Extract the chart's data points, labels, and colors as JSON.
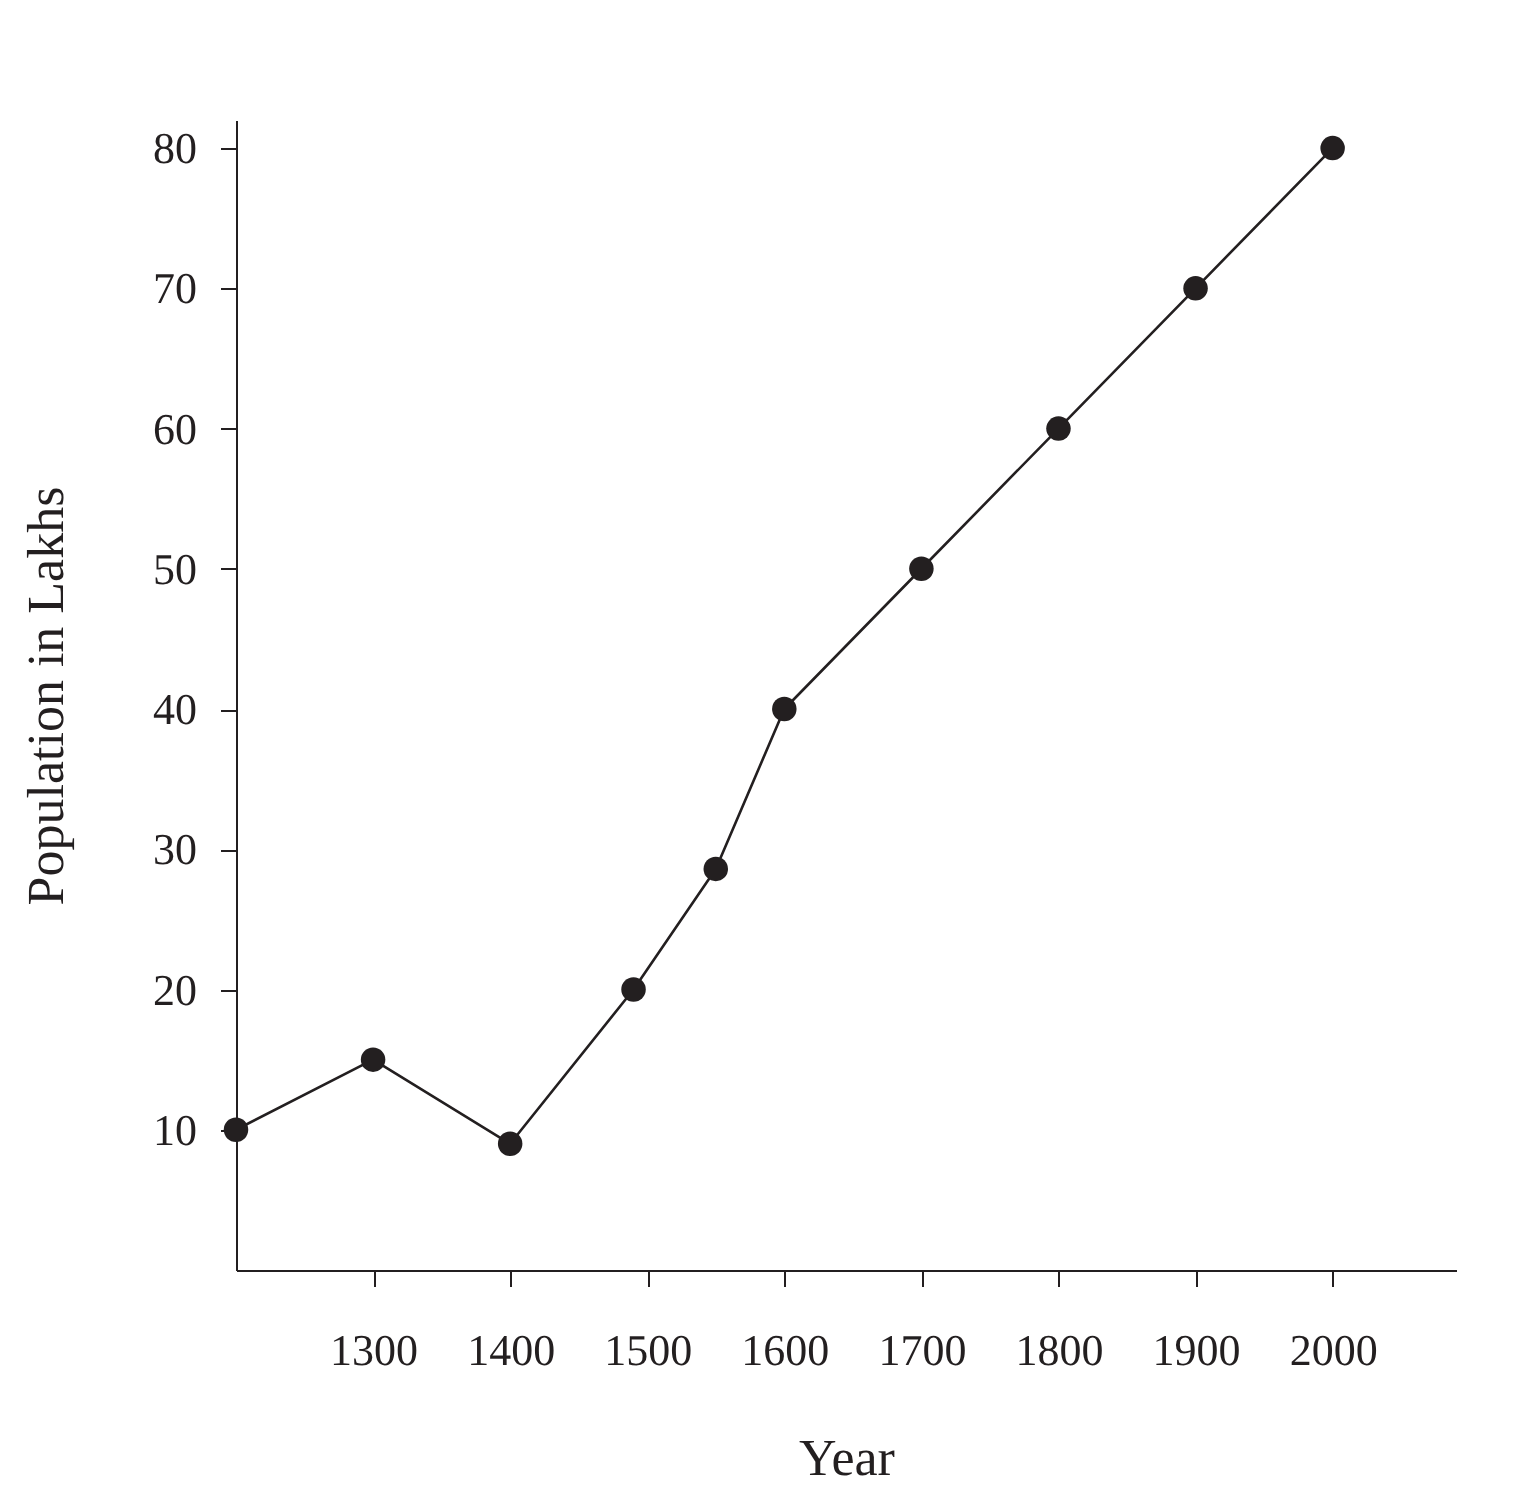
{
  "chart_data": {
    "type": "line",
    "xlabel": "Year",
    "ylabel": "Population in Lakhs",
    "x": [
      1200,
      1300,
      1400,
      1490,
      1550,
      1600,
      1700,
      1800,
      1900,
      2000
    ],
    "series": [
      {
        "color": "#231f20",
        "values": [
          10,
          15,
          9,
          20,
          28.6,
          40,
          50,
          60,
          70,
          80
        ]
      }
    ],
    "xlim": [
      1200,
      2090
    ],
    "ylim": [
      0,
      82
    ],
    "xticks": [
      1300,
      1400,
      1500,
      1600,
      1700,
      1800,
      1900,
      2000
    ],
    "yticks": [
      10,
      20,
      30,
      40,
      50,
      60,
      70,
      80
    ],
    "grid": false,
    "legend": false,
    "marker": "circle",
    "line_style": "solid"
  }
}
